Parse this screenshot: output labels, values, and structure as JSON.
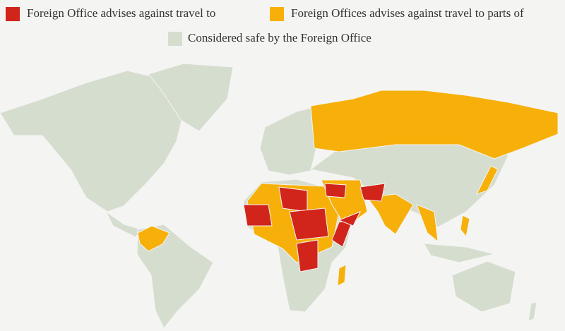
{
  "legend": [
    {
      "label": "Foreign Office advises against travel to",
      "color": "#d1241b"
    },
    {
      "label": "Foreign Offices advises against travel to parts of",
      "color": "#f7b009"
    },
    {
      "label": "Considered safe by the Foreign Office",
      "color": "#d5ddcf"
    }
  ]
}
